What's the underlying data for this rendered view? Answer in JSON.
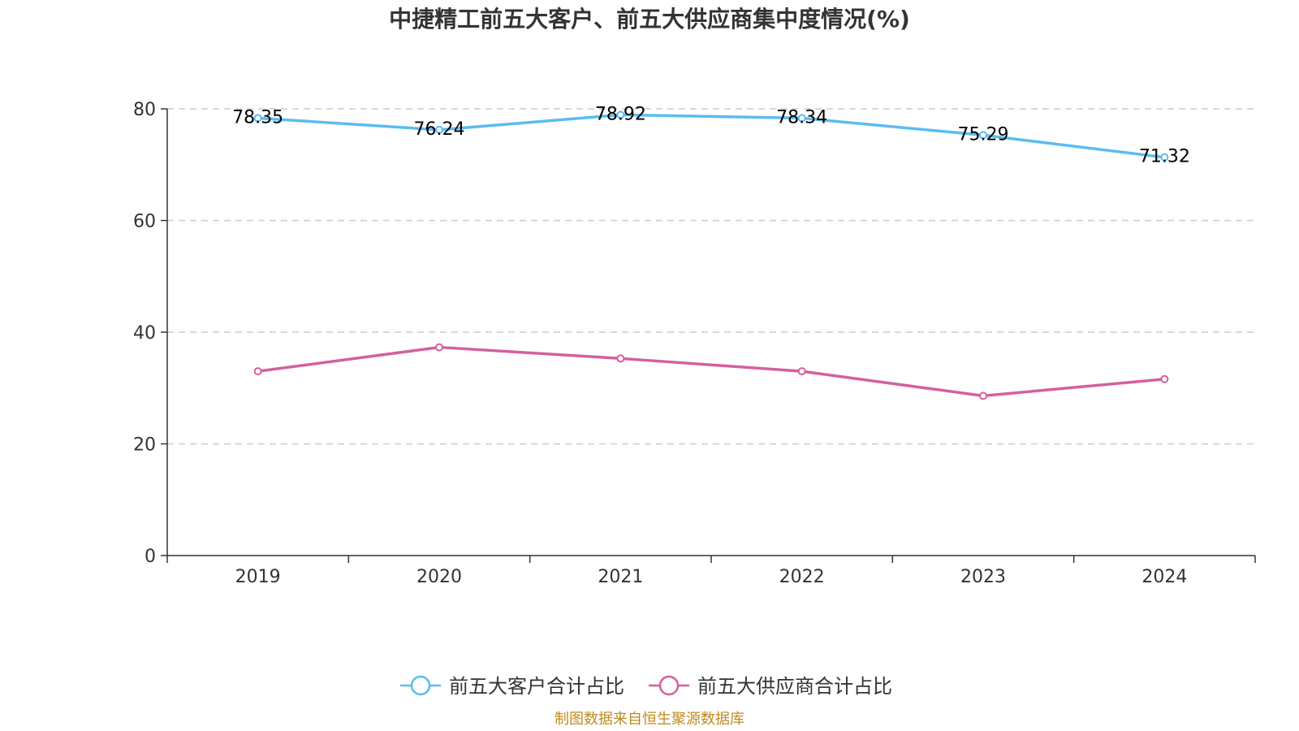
{
  "chart_data": {
    "type": "line",
    "title": "中捷精工前五大客户、前五大供应商集中度情况(%)",
    "xlabel": "",
    "ylabel": "",
    "categories": [
      "2019",
      "2020",
      "2021",
      "2022",
      "2023",
      "2024"
    ],
    "ylim": [
      0,
      80
    ],
    "yticks": [
      0,
      20,
      40,
      60,
      80
    ],
    "grid": true,
    "legend_position": "bottom",
    "series": [
      {
        "name": "前五大客户合计占比",
        "color": "#5bbcf0",
        "values": [
          78.35,
          76.24,
          78.92,
          78.34,
          75.29,
          71.32
        ],
        "labels": [
          "78.35",
          "76.24",
          "78.92",
          "78.34",
          "75.29",
          "71.32"
        ],
        "show_labels": true
      },
      {
        "name": "前五大供应商合计占比",
        "color": "#d4609f",
        "values": [
          33.0,
          37.3,
          35.3,
          33.0,
          28.6,
          31.6
        ],
        "show_labels": false
      }
    ],
    "source": "制图数据来自恒生聚源数据库"
  }
}
